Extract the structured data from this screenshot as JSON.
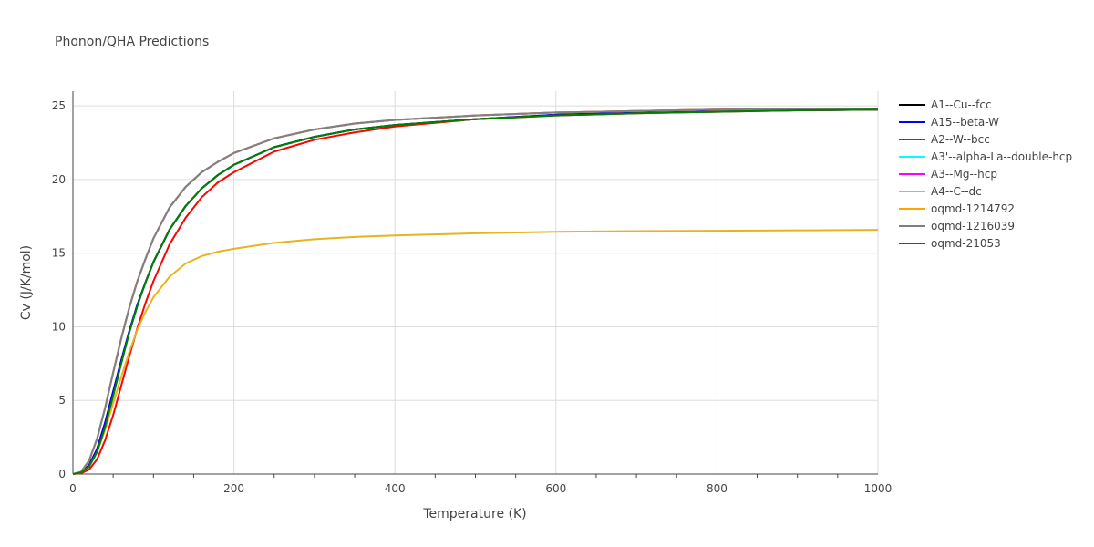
{
  "chart_data": {
    "type": "line",
    "title": "Phonon/QHA Predictions",
    "xlabel": "Temperature (K)",
    "ylabel": "Cv (J/K/mol)",
    "xlim": [
      0,
      1000
    ],
    "ylim": [
      0,
      26
    ],
    "xticks": [
      0,
      200,
      400,
      600,
      800,
      1000
    ],
    "yticks": [
      0,
      5,
      10,
      15,
      20,
      25
    ],
    "grid": true,
    "legend_position": "right",
    "x": [
      0,
      10,
      20,
      30,
      40,
      50,
      60,
      70,
      80,
      90,
      100,
      120,
      140,
      160,
      180,
      200,
      250,
      300,
      350,
      400,
      500,
      600,
      700,
      800,
      900,
      1000
    ],
    "series": [
      {
        "name": "A1--Cu--fcc",
        "color": "#000000",
        "values": [
          0,
          0.1,
          0.6,
          1.7,
          3.5,
          5.6,
          7.7,
          9.7,
          11.5,
          13.0,
          14.4,
          16.6,
          18.2,
          19.4,
          20.3,
          21.0,
          22.2,
          22.9,
          23.4,
          23.7,
          24.1,
          24.4,
          24.55,
          24.65,
          24.7,
          24.75
        ]
      },
      {
        "name": "A15--beta-W",
        "color": "#0000ff",
        "values": [
          0,
          0.1,
          0.6,
          1.7,
          3.5,
          5.6,
          7.7,
          9.7,
          11.5,
          13.0,
          14.4,
          16.6,
          18.2,
          19.4,
          20.3,
          21.0,
          22.2,
          22.9,
          23.4,
          23.7,
          24.1,
          24.4,
          24.55,
          24.65,
          24.7,
          24.75
        ]
      },
      {
        "name": "A2--W--bcc",
        "color": "#ff0000",
        "values": [
          0,
          0.05,
          0.3,
          1.0,
          2.3,
          4.0,
          6.0,
          8.0,
          9.9,
          11.6,
          13.1,
          15.6,
          17.4,
          18.8,
          19.8,
          20.5,
          21.9,
          22.7,
          23.2,
          23.6,
          24.1,
          24.35,
          24.5,
          24.6,
          24.7,
          24.75
        ]
      },
      {
        "name": "A3'--alpha-La--double-hcp",
        "color": "#00ffff",
        "values": [
          0,
          0.15,
          0.9,
          2.4,
          4.5,
          6.9,
          9.2,
          11.3,
          13.1,
          14.6,
          16.0,
          18.1,
          19.5,
          20.5,
          21.2,
          21.8,
          22.8,
          23.4,
          23.8,
          24.05,
          24.35,
          24.55,
          24.65,
          24.75,
          24.8,
          24.8
        ]
      },
      {
        "name": "A3--Mg--hcp",
        "color": "#ff00ff",
        "values": [
          0,
          0.15,
          0.9,
          2.4,
          4.5,
          6.9,
          9.2,
          11.3,
          13.1,
          14.6,
          16.0,
          18.1,
          19.5,
          20.5,
          21.2,
          21.8,
          22.8,
          23.4,
          23.8,
          24.05,
          24.35,
          24.55,
          24.65,
          24.75,
          24.8,
          24.8
        ]
      },
      {
        "name": "A4--C--dc",
        "color": "#e6b422",
        "values": [
          0,
          0.1,
          0.5,
          1.5,
          3.0,
          4.8,
          6.6,
          8.3,
          9.8,
          11.0,
          12.0,
          13.4,
          14.3,
          14.8,
          15.1,
          15.3,
          15.7,
          15.95,
          16.1,
          16.2,
          16.35,
          16.45,
          16.5,
          16.52,
          16.55,
          16.58
        ]
      },
      {
        "name": "oqmd-1214792",
        "color": "#ffa500",
        "values": [
          0,
          0.15,
          0.9,
          2.4,
          4.5,
          6.9,
          9.2,
          11.3,
          13.1,
          14.6,
          16.0,
          18.1,
          19.5,
          20.5,
          21.2,
          21.8,
          22.8,
          23.4,
          23.8,
          24.05,
          24.35,
          24.55,
          24.65,
          24.75,
          24.8,
          24.8
        ]
      },
      {
        "name": "oqmd-1216039",
        "color": "#808080",
        "values": [
          0,
          0.15,
          0.9,
          2.4,
          4.5,
          6.9,
          9.2,
          11.3,
          13.1,
          14.6,
          16.0,
          18.1,
          19.5,
          20.5,
          21.2,
          21.8,
          22.8,
          23.4,
          23.8,
          24.05,
          24.35,
          24.55,
          24.65,
          24.75,
          24.8,
          24.8
        ]
      },
      {
        "name": "oqmd-21053",
        "color": "#008000",
        "values": [
          0,
          0.1,
          0.5,
          1.5,
          3.2,
          5.3,
          7.5,
          9.6,
          11.4,
          13.0,
          14.4,
          16.6,
          18.2,
          19.4,
          20.3,
          21.0,
          22.2,
          22.9,
          23.4,
          23.7,
          24.1,
          24.35,
          24.5,
          24.6,
          24.7,
          24.75
        ]
      }
    ]
  }
}
